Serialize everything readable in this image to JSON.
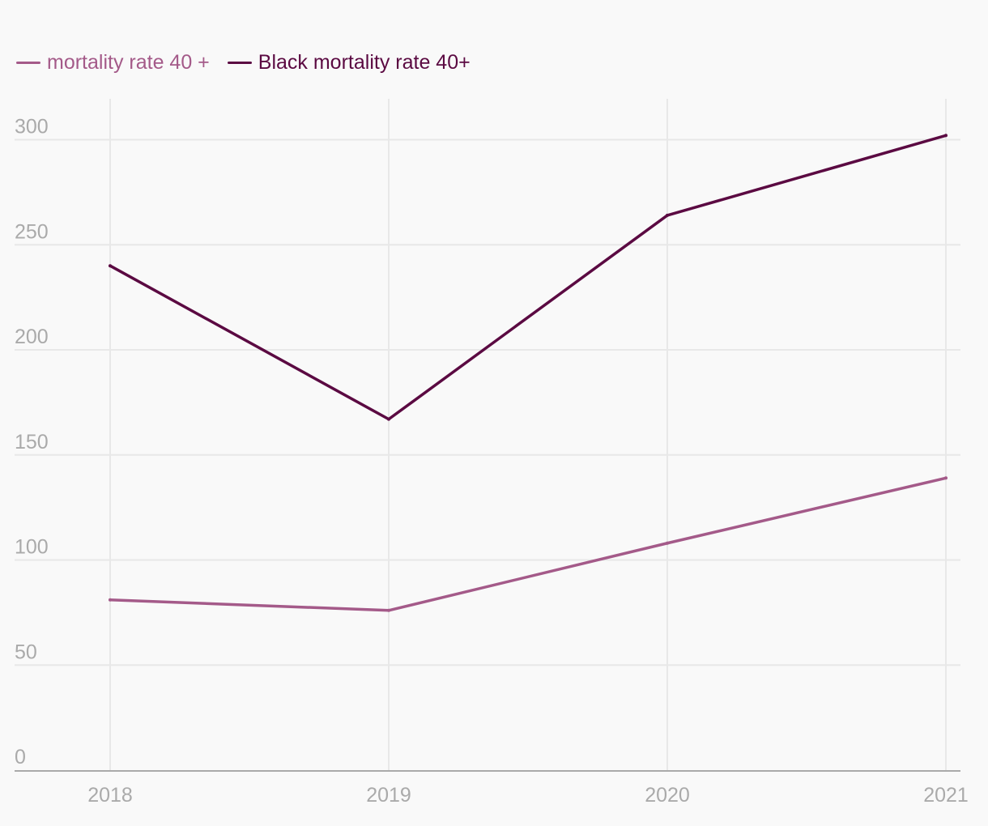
{
  "chart_data": {
    "type": "line",
    "title": "",
    "xlabel": "",
    "ylabel": "",
    "categories": [
      "2018",
      "2019",
      "2020",
      "2021"
    ],
    "ylim": [
      0,
      320
    ],
    "yticks": [
      0,
      50,
      100,
      150,
      200,
      250,
      300
    ],
    "grid": true,
    "legend_position": "top-left",
    "series": [
      {
        "name": "mortality rate 40 +",
        "color": "#a45a89",
        "values": [
          81,
          76,
          108,
          139
        ]
      },
      {
        "name": "Black mortality rate 40+",
        "color": "#5b0a42",
        "values": [
          240,
          167,
          264,
          302
        ]
      }
    ]
  },
  "colors": {
    "background": "#f9f9f9",
    "grid": "#e8e8e8",
    "axis": "#aaaaaa",
    "tick_text": "#aaaaaa"
  }
}
